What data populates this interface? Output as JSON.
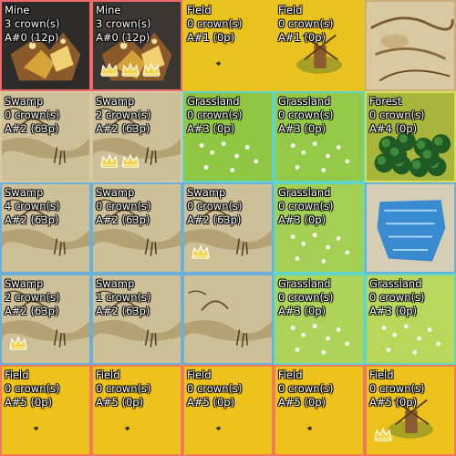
{
  "board": {
    "tiles": [
      {
        "id": "r0c0",
        "terrain": "Mine",
        "crowns": "3 crown(s)",
        "area": "A#0 (12p)",
        "crown_count": 3,
        "crown_icons_visible": 0,
        "base": "#2e2c2a",
        "border": "#f06a6a",
        "art": "mine"
      },
      {
        "id": "r0c1",
        "terrain": "Mine",
        "crowns": "3 crown(s)",
        "area": "A#0 (12p)",
        "crown_count": 3,
        "crown_icons_visible": 3,
        "base": "#3a3631",
        "border": "#f06a6a",
        "art": "mine"
      },
      {
        "id": "r0c2",
        "terrain": "Field",
        "crowns": "0 crown(s)",
        "area": "A#1 (0p)",
        "crown_count": 0,
        "crown_icons_visible": 0,
        "base": "#e8c21f",
        "border": "#e8c21f",
        "art": "field"
      },
      {
        "id": "r0c3",
        "terrain": "Field",
        "crowns": "0 crown(s)",
        "area": "A#1 (0p)",
        "crown_count": 0,
        "crown_icons_visible": 0,
        "base": "#e8c21f",
        "border": "#e8c21f",
        "art": "windmill"
      },
      {
        "id": "r0c4",
        "terrain": "",
        "crowns": "",
        "area": "",
        "crown_count": 0,
        "crown_icons_visible": 0,
        "base": "#d9c9a0",
        "border": "#c9b07a",
        "art": "start"
      },
      {
        "id": "r1c0",
        "terrain": "Swamp",
        "crowns": "0 crown(s)",
        "area": "A#2 (63p)",
        "crown_count": 0,
        "crown_icons_visible": 0,
        "base": "#cdbf97",
        "border": "#d8c9a0",
        "art": "swamp"
      },
      {
        "id": "r1c1",
        "terrain": "Swamp",
        "crowns": "2 crown(s)",
        "area": "A#2 (63p)",
        "crown_count": 2,
        "crown_icons_visible": 2,
        "base": "#cdbf97",
        "border": "#d8c9a0",
        "art": "swamp"
      },
      {
        "id": "r1c2",
        "terrain": "Grassland",
        "crowns": "0 crown(s)",
        "area": "A#3 (0p)",
        "crown_count": 0,
        "crown_icons_visible": 0,
        "base": "#86c232",
        "border": "#5fd6c8",
        "art": "grass"
      },
      {
        "id": "r1c3",
        "terrain": "Grassland",
        "crowns": "0 crown(s)",
        "area": "A#3 (0p)",
        "crown_count": 0,
        "crown_icons_visible": 0,
        "base": "#8cc63a",
        "border": "#5fd6c8",
        "art": "grass"
      },
      {
        "id": "r1c4",
        "terrain": "Forest",
        "crowns": "0 crown(s)",
        "area": "A#4 (0p)",
        "crown_count": 0,
        "crown_icons_visible": 0,
        "base": "#a7b53a",
        "border": "#d8e05a",
        "art": "forest"
      },
      {
        "id": "r2c0",
        "terrain": "Swamp",
        "crowns": "4 crown(s)",
        "area": "A#2 (63p)",
        "crown_count": 4,
        "crown_icons_visible": 0,
        "base": "#cdbf97",
        "border": "#6ab0d8",
        "art": "swamp"
      },
      {
        "id": "r2c1",
        "terrain": "Swamp",
        "crowns": "0 crown(s)",
        "area": "A#2 (63p)",
        "crown_count": 0,
        "crown_icons_visible": 0,
        "base": "#cdbf97",
        "border": "#6ab0d8",
        "art": "swamp"
      },
      {
        "id": "r2c2",
        "terrain": "Swamp",
        "crowns": "0 crown(s)",
        "area": "A#2 (63p)",
        "crown_count": 0,
        "crown_icons_visible": 1,
        "base": "#cdbf97",
        "border": "#6ab0d8",
        "art": "swamp"
      },
      {
        "id": "r2c3",
        "terrain": "Grassland",
        "crowns": "0 crown(s)",
        "area": "A#3 (0p)",
        "crown_count": 0,
        "crown_icons_visible": 0,
        "base": "#9ccd45",
        "border": "#5fd6c8",
        "art": "grass"
      },
      {
        "id": "r2c4",
        "terrain": "",
        "crowns": "",
        "area": "",
        "crown_count": 0,
        "crown_icons_visible": 0,
        "base": "#d6cdb5",
        "border": "#6ab0d8",
        "art": "lake"
      },
      {
        "id": "r3c0",
        "terrain": "Swamp",
        "crowns": "2 crown(s)",
        "area": "A#2 (63p)",
        "crown_count": 2,
        "crown_icons_visible": 1,
        "base": "#cdbf97",
        "border": "#6ab0d8",
        "art": "swamp"
      },
      {
        "id": "r3c1",
        "terrain": "Swamp",
        "crowns": "1 crown(s)",
        "area": "A#2 (63p)",
        "crown_count": 1,
        "crown_icons_visible": 0,
        "base": "#cdbf97",
        "border": "#6ab0d8",
        "art": "swamp"
      },
      {
        "id": "r3c2",
        "terrain": "",
        "crowns": "",
        "area": "",
        "crown_count": 0,
        "crown_icons_visible": 0,
        "base": "#cdbf97",
        "border": "#6ab0d8",
        "art": "swamp"
      },
      {
        "id": "r3c3",
        "terrain": "Grassland",
        "crowns": "0 crown(s)",
        "area": "A#3 (0p)",
        "crown_count": 0,
        "crown_icons_visible": 0,
        "base": "#a6d14a",
        "border": "#5fd6c8",
        "art": "grass"
      },
      {
        "id": "r3c4",
        "terrain": "Grassland",
        "crowns": "0 crown(s)",
        "area": "A#3 (0p)",
        "crown_count": 0,
        "crown_icons_visible": 0,
        "base": "#b2d44e",
        "border": "#5fd6c8",
        "art": "grass"
      },
      {
        "id": "r4c0",
        "terrain": "Field",
        "crowns": "0 crown(s)",
        "area": "A#5 (0p)",
        "crown_count": 0,
        "crown_icons_visible": 0,
        "base": "#eec21c",
        "border": "#f07a5a",
        "art": "field"
      },
      {
        "id": "r4c1",
        "terrain": "Field",
        "crowns": "0 crown(s)",
        "area": "A#5 (0p)",
        "crown_count": 0,
        "crown_icons_visible": 0,
        "base": "#eec21c",
        "border": "#f07a5a",
        "art": "field"
      },
      {
        "id": "r4c2",
        "terrain": "Field",
        "crowns": "0 crown(s)",
        "area": "A#5 (0p)",
        "crown_count": 0,
        "crown_icons_visible": 0,
        "base": "#eec21c",
        "border": "#f07a5a",
        "art": "field"
      },
      {
        "id": "r4c3",
        "terrain": "Field",
        "crowns": "0 crown(s)",
        "area": "A#5 (0p)",
        "crown_count": 0,
        "crown_icons_visible": 0,
        "base": "#eec21c",
        "border": "#f07a5a",
        "art": "field"
      },
      {
        "id": "r4c4",
        "terrain": "Field",
        "crowns": "0 crown(s)",
        "area": "A#5 (0p)",
        "crown_count": 0,
        "crown_icons_visible": 1,
        "base": "#eec21c",
        "border": "#f07a5a",
        "art": "windmill"
      }
    ]
  }
}
